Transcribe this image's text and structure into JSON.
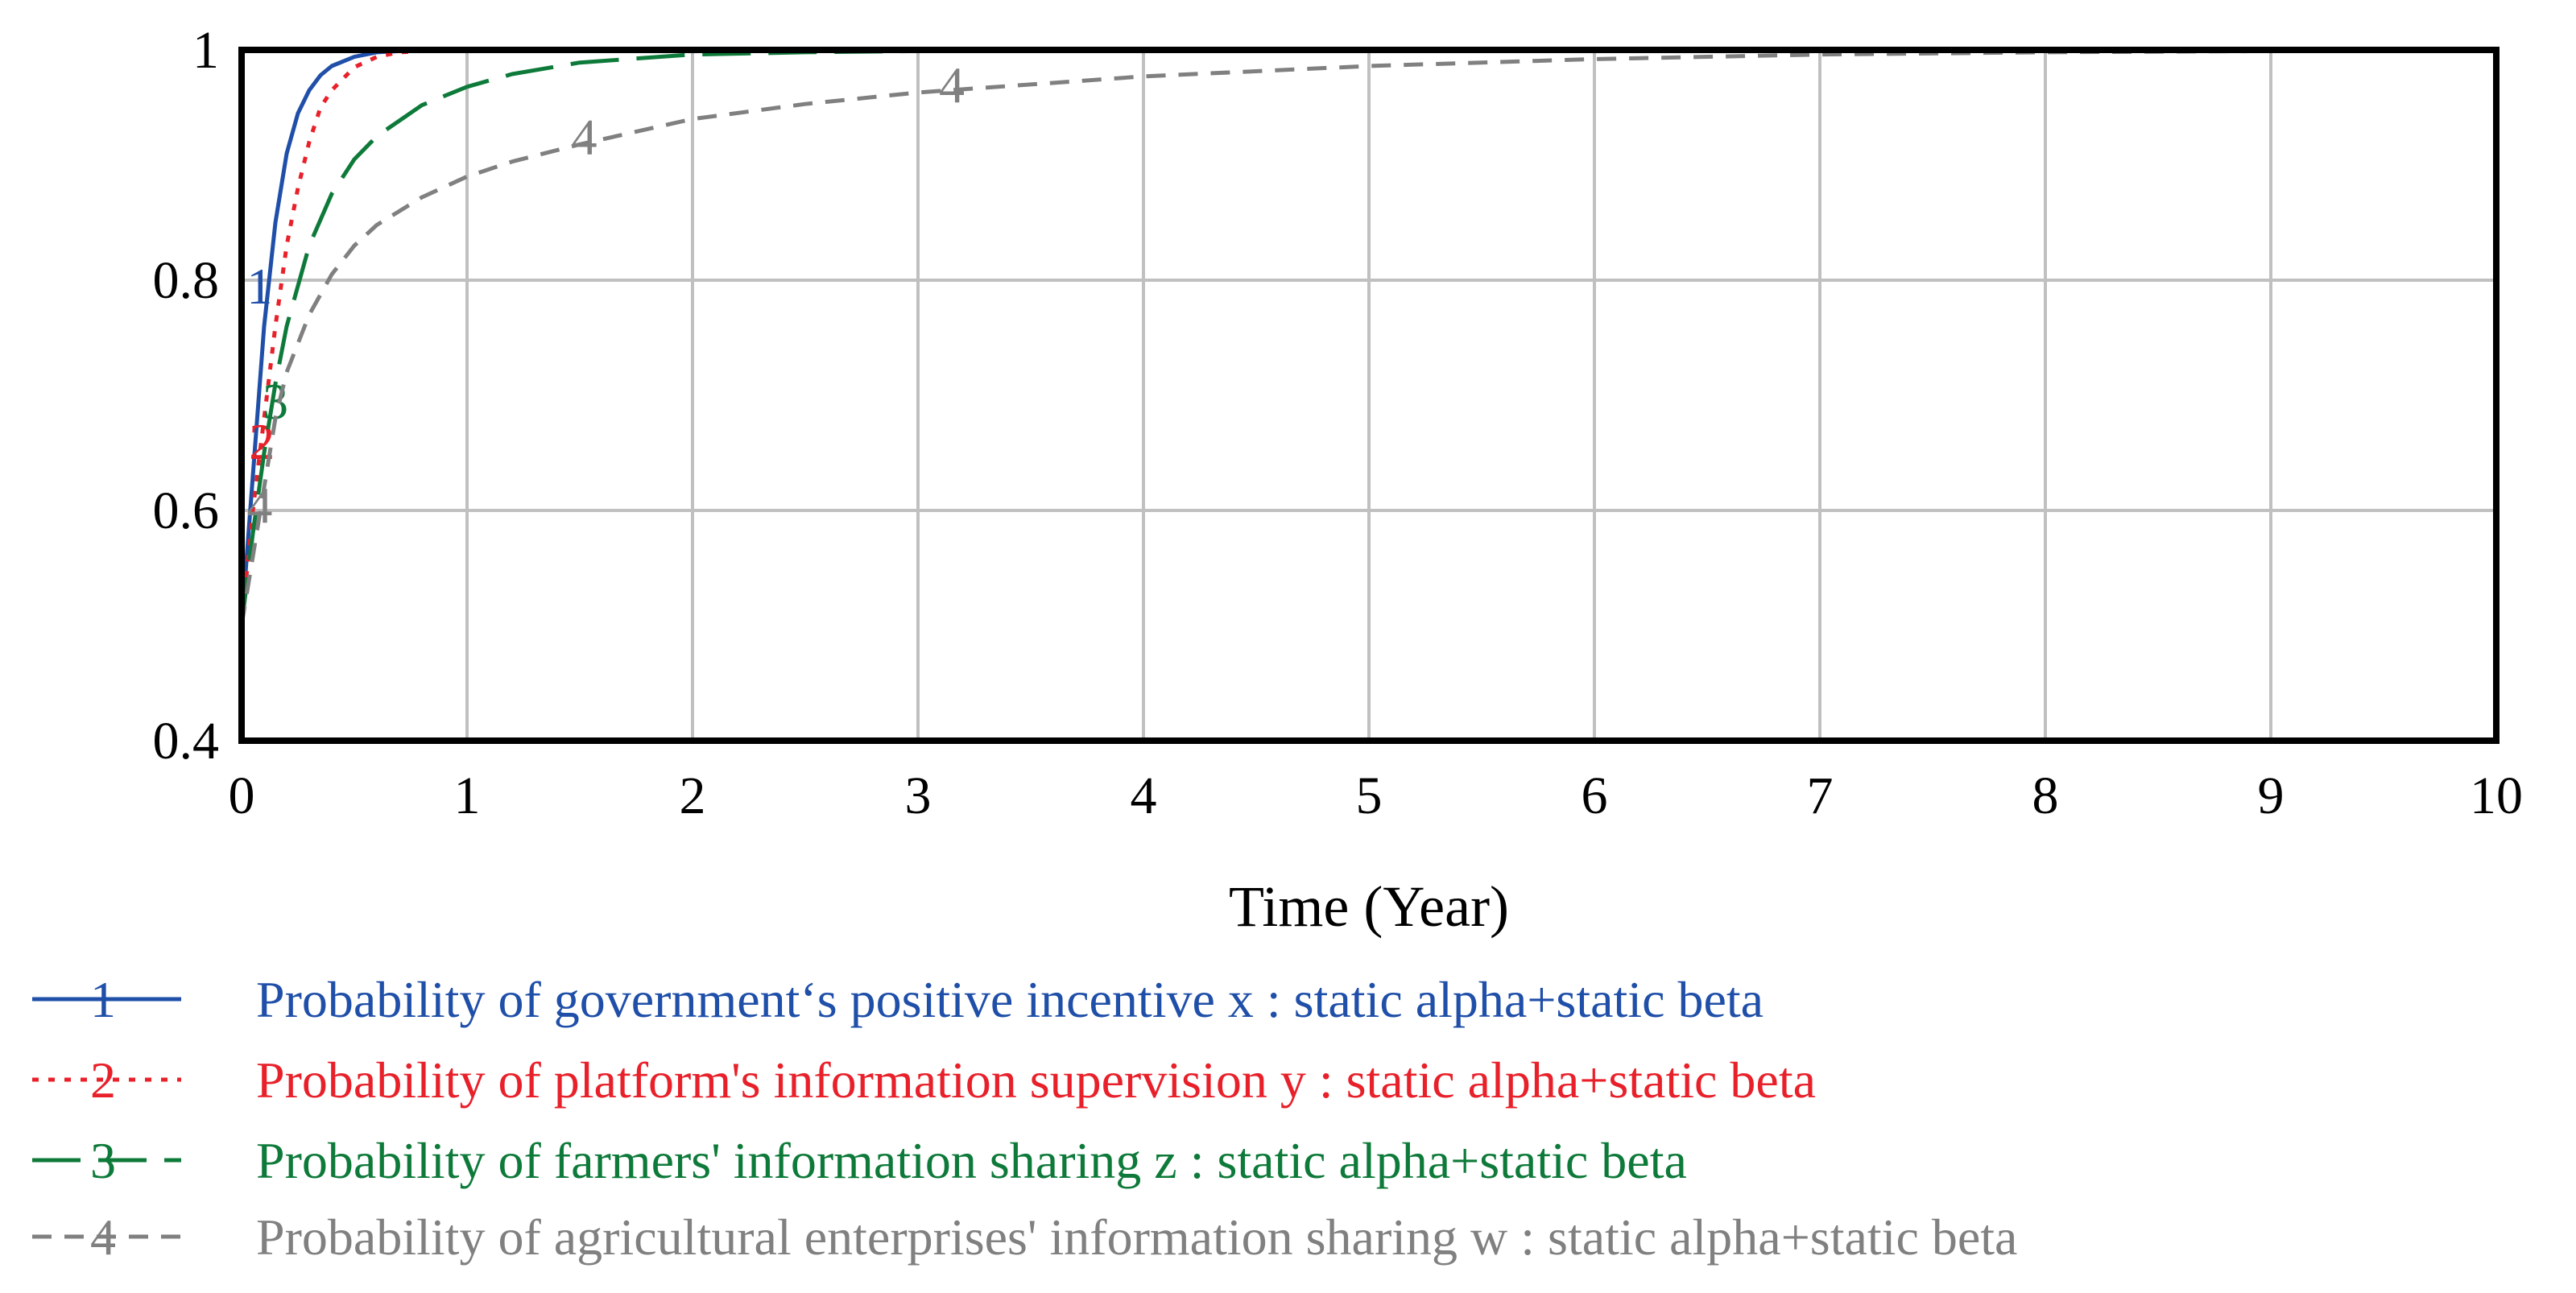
{
  "chart_data": {
    "type": "line",
    "title": "",
    "xlabel": "Time (Year)",
    "ylabel": "",
    "xlim": [
      0,
      10
    ],
    "ylim": [
      0.4,
      1
    ],
    "xticks": [
      "0",
      "1",
      "2",
      "3",
      "4",
      "5",
      "6",
      "7",
      "8",
      "9",
      "10"
    ],
    "yticks": [
      "0.4",
      "0.6",
      "0.8",
      "1"
    ],
    "grid": true,
    "legend_position": "bottom",
    "series": [
      {
        "name": "Probability of government‘s positive incentive x : static alpha+static beta",
        "marker": "1",
        "color": "#1f4fa8",
        "dash": "solid",
        "x": [
          0,
          0.05,
          0.1,
          0.15,
          0.2,
          0.25,
          0.3,
          0.35,
          0.4,
          0.5,
          0.6,
          0.7,
          0.8,
          1,
          1.5,
          2,
          3,
          4,
          5,
          6,
          7,
          8,
          9,
          10
        ],
        "y": [
          0.5,
          0.63,
          0.76,
          0.85,
          0.91,
          0.945,
          0.965,
          0.978,
          0.986,
          0.994,
          0.998,
          0.999,
          1,
          1,
          1,
          1,
          1,
          1,
          1,
          1,
          1,
          1,
          1,
          1
        ]
      },
      {
        "name": "Probability of platform's information supervision y : static alpha+static beta",
        "marker": "2",
        "color": "#e8202a",
        "dash": "dotted",
        "x": [
          0,
          0.05,
          0.1,
          0.15,
          0.2,
          0.25,
          0.3,
          0.35,
          0.4,
          0.5,
          0.6,
          0.7,
          0.8,
          1,
          1.5,
          2,
          3,
          4,
          5,
          6,
          7,
          8,
          9,
          10
        ],
        "y": [
          0.5,
          0.6,
          0.68,
          0.76,
          0.83,
          0.88,
          0.92,
          0.95,
          0.965,
          0.985,
          0.994,
          0.998,
          0.999,
          1,
          1,
          1,
          1,
          1,
          1,
          1,
          1,
          1,
          1,
          1
        ]
      },
      {
        "name": "Probability of farmers' information sharing z : static alpha+static beta",
        "marker": "3",
        "color": "#0e7a3a",
        "dash": "longdash",
        "x": [
          0,
          0.05,
          0.1,
          0.15,
          0.2,
          0.3,
          0.4,
          0.5,
          0.6,
          0.8,
          1,
          1.2,
          1.5,
          2,
          2.5,
          3,
          4,
          5,
          6,
          7,
          8,
          9,
          10
        ],
        "y": [
          0.5,
          0.58,
          0.65,
          0.71,
          0.76,
          0.83,
          0.875,
          0.905,
          0.925,
          0.952,
          0.968,
          0.979,
          0.989,
          0.996,
          0.998,
          0.999,
          1,
          1,
          1,
          1,
          1,
          1,
          1
        ]
      },
      {
        "name": "Probability of agricultural enterprises' information sharing w : static alpha+static beta",
        "marker": "4",
        "color": "#808080",
        "dash": "dashed",
        "x": [
          0,
          0.05,
          0.1,
          0.15,
          0.2,
          0.3,
          0.4,
          0.5,
          0.6,
          0.8,
          1,
          1.2,
          1.5,
          2,
          2.5,
          3,
          3.5,
          4,
          5,
          6,
          7,
          8,
          9,
          10
        ],
        "y": [
          0.5,
          0.56,
          0.62,
          0.68,
          0.72,
          0.77,
          0.805,
          0.83,
          0.848,
          0.872,
          0.89,
          0.903,
          0.918,
          0.94,
          0.953,
          0.963,
          0.97,
          0.977,
          0.986,
          0.992,
          0.996,
          0.998,
          0.999,
          1
        ]
      }
    ]
  }
}
